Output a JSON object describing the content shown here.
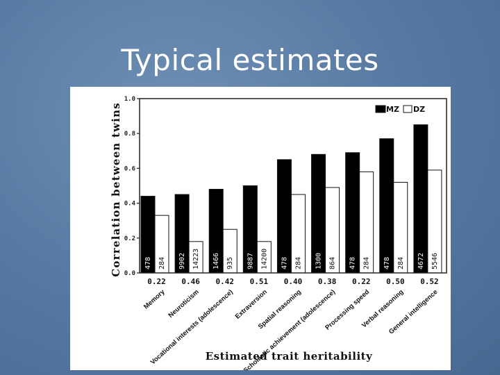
{
  "slide": {
    "title": "Typical estimates"
  },
  "chart_data": {
    "type": "bar",
    "ylabel": "Correlation between twins",
    "xlabel": "Estimated trait heritability",
    "ylim": [
      0,
      1.0
    ],
    "yticks": [
      "0.0",
      "0.2",
      "0.4",
      "0.6",
      "0.8",
      "1.0"
    ],
    "legend": [
      "MZ",
      "DZ"
    ],
    "legend_position": "top-right",
    "categories": [
      "Memory",
      "Neuroticism",
      "Vocational interests (adolescence)",
      "Extraversion",
      "Spatial reasoning",
      "Scholastic achievement (adolescence)",
      "Processing speed",
      "Verbal reasoning",
      "General intelligence"
    ],
    "heritability": [
      "0.22",
      "0.46",
      "0.42",
      "0.51",
      "0.40",
      "0.38",
      "0.22",
      "0.50",
      "0.52"
    ],
    "series": [
      {
        "name": "MZ",
        "color": "#000000",
        "values": [
          0.44,
          0.45,
          0.48,
          0.5,
          0.65,
          0.68,
          0.69,
          0.77,
          0.85
        ],
        "n": [
          "478",
          "9902",
          "1466",
          "9887",
          "478",
          "1300",
          "478",
          "478",
          "4672"
        ]
      },
      {
        "name": "DZ",
        "color": "#ffffff",
        "values": [
          0.33,
          0.18,
          0.25,
          0.18,
          0.45,
          0.49,
          0.58,
          0.52,
          0.59
        ],
        "n": [
          "284",
          "14223",
          "935",
          "14200",
          "284",
          "864",
          "284",
          "284",
          "5546"
        ]
      }
    ]
  }
}
